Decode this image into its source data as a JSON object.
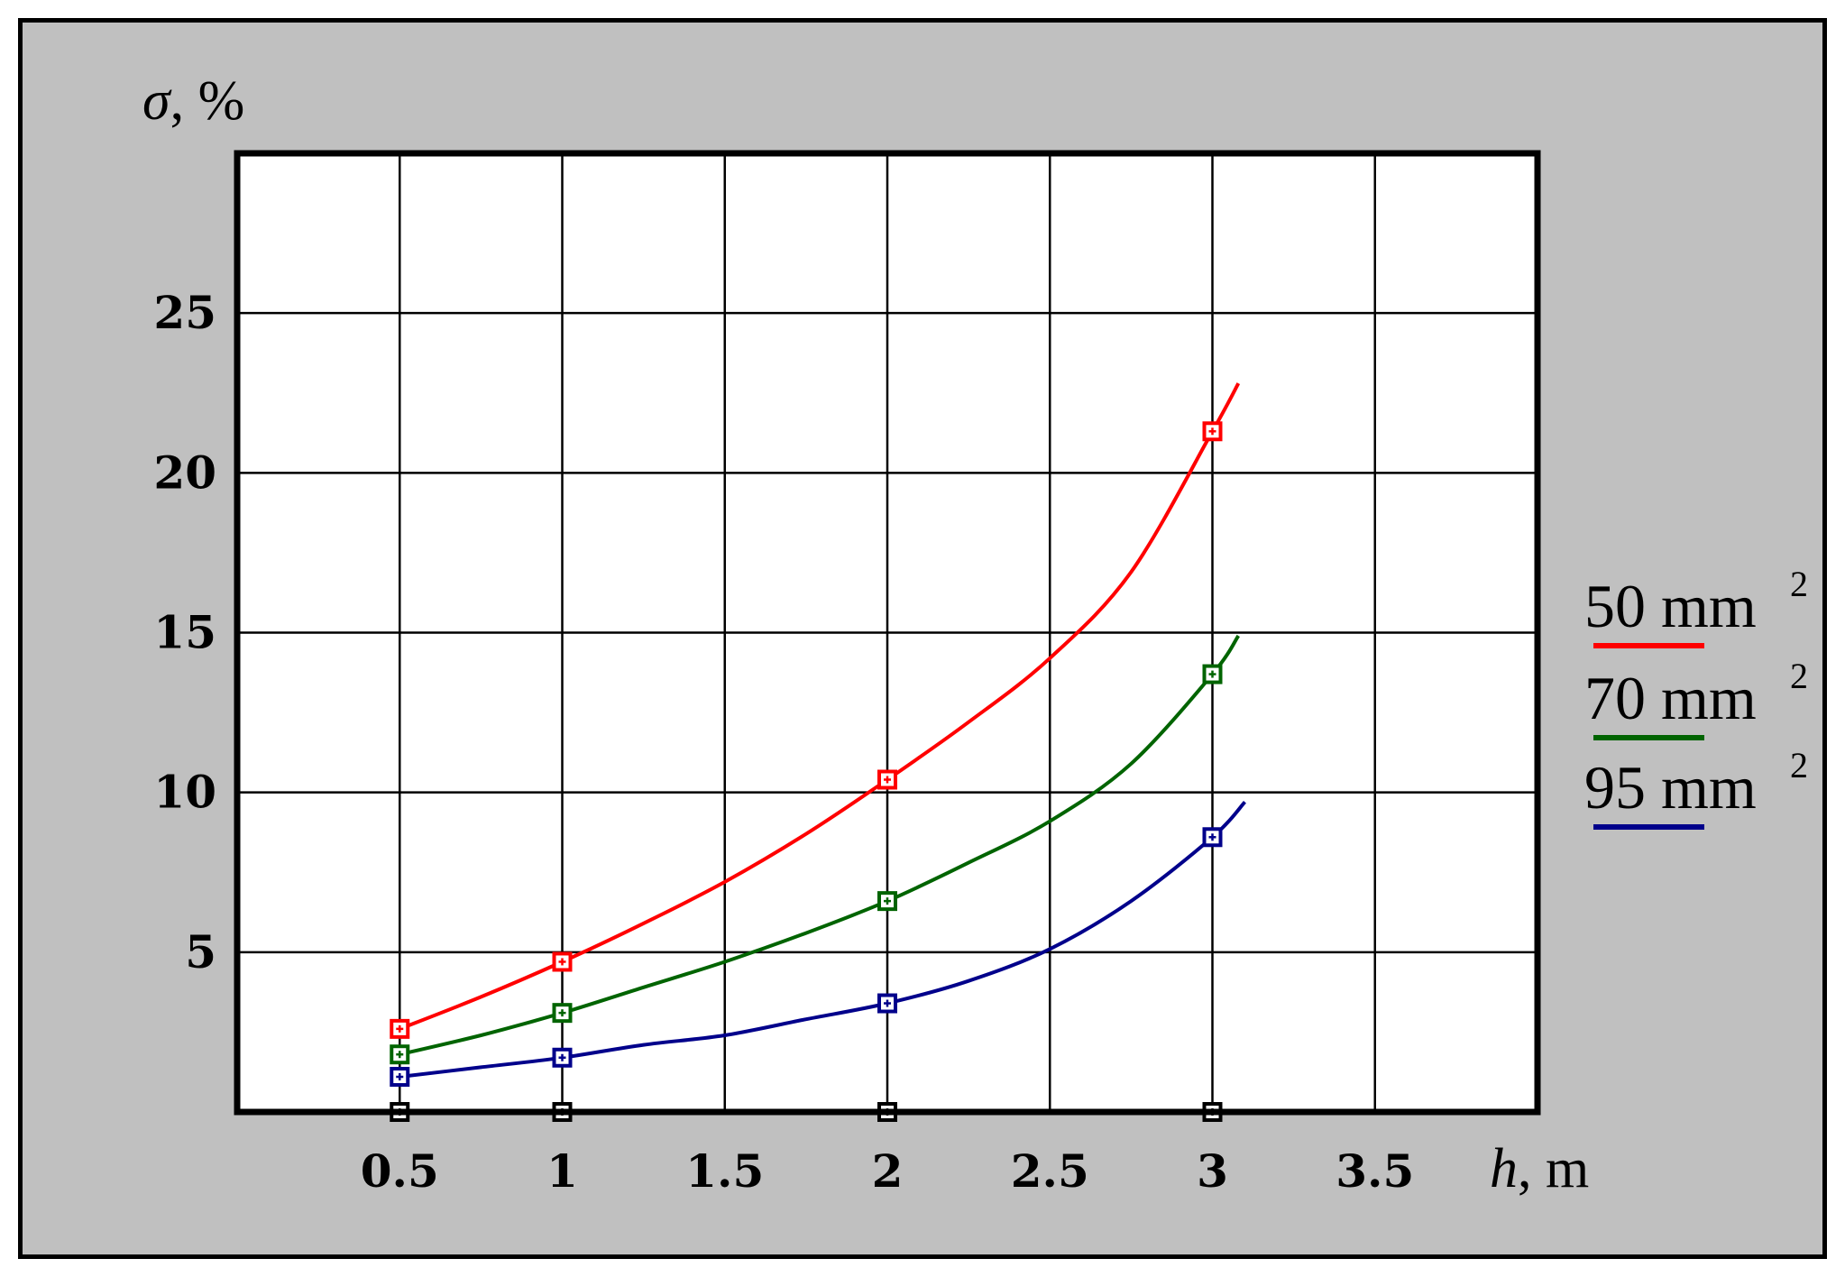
{
  "chart_data": {
    "type": "line",
    "xlabel": {
      "var": "h",
      "unit": ", m"
    },
    "ylabel": {
      "var": "σ",
      "unit": ", %"
    },
    "xlim": [
      0,
      4
    ],
    "ylim": [
      0,
      30
    ],
    "grid": true,
    "x_ticks": [
      0.5,
      1,
      1.5,
      2,
      2.5,
      3,
      3.5
    ],
    "x_tick_labels": [
      "0.5",
      "1",
      "1.5",
      "2",
      "2.5",
      "3",
      "3.5"
    ],
    "y_ticks": [
      5,
      10,
      15,
      20,
      25
    ],
    "y_tick_labels": [
      "5",
      "10",
      "15",
      "20",
      "25"
    ],
    "legend_placement": "right",
    "series": [
      {
        "name": "50 mm",
        "superscript": "2",
        "color": "#ff0000",
        "markers": [
          [
            0.5,
            2.6
          ],
          [
            1,
            4.7
          ],
          [
            2,
            10.4
          ],
          [
            3,
            21.3
          ]
        ],
        "curve": [
          [
            0.5,
            2.6
          ],
          [
            0.75,
            3.6
          ],
          [
            1,
            4.7
          ],
          [
            1.25,
            5.9
          ],
          [
            1.5,
            7.2
          ],
          [
            1.75,
            8.7
          ],
          [
            2,
            10.4
          ],
          [
            2.25,
            12.2
          ],
          [
            2.5,
            14.2
          ],
          [
            2.75,
            16.9
          ],
          [
            3,
            21.3
          ],
          [
            3.08,
            22.8
          ]
        ]
      },
      {
        "name": "70 mm",
        "superscript": "2",
        "color": "#006400",
        "markers": [
          [
            0.5,
            1.8
          ],
          [
            1,
            3.1
          ],
          [
            2,
            6.6
          ],
          [
            3,
            13.7
          ]
        ],
        "curve": [
          [
            0.5,
            1.8
          ],
          [
            0.75,
            2.4
          ],
          [
            1,
            3.1
          ],
          [
            1.25,
            3.9
          ],
          [
            1.5,
            4.7
          ],
          [
            1.75,
            5.6
          ],
          [
            2,
            6.6
          ],
          [
            2.25,
            7.8
          ],
          [
            2.5,
            9.1
          ],
          [
            2.75,
            10.9
          ],
          [
            3,
            13.7
          ],
          [
            3.08,
            14.9
          ]
        ]
      },
      {
        "name": "95 mm",
        "superscript": "2",
        "color": "#00008b",
        "markers": [
          [
            0.5,
            1.1
          ],
          [
            1,
            1.7
          ],
          [
            2,
            3.4
          ],
          [
            3,
            8.6
          ]
        ],
        "curve": [
          [
            0.5,
            1.1
          ],
          [
            0.75,
            1.4
          ],
          [
            1,
            1.7
          ],
          [
            1.25,
            2.1
          ],
          [
            1.5,
            2.4
          ],
          [
            1.75,
            2.9
          ],
          [
            2,
            3.4
          ],
          [
            2.25,
            4.1
          ],
          [
            2.5,
            5.1
          ],
          [
            2.75,
            6.6
          ],
          [
            3,
            8.6
          ],
          [
            3.1,
            9.7
          ]
        ]
      }
    ],
    "baseline_markers": [
      [
        0.5,
        0
      ],
      [
        1,
        0
      ],
      [
        2,
        0
      ],
      [
        3,
        0
      ]
    ]
  }
}
